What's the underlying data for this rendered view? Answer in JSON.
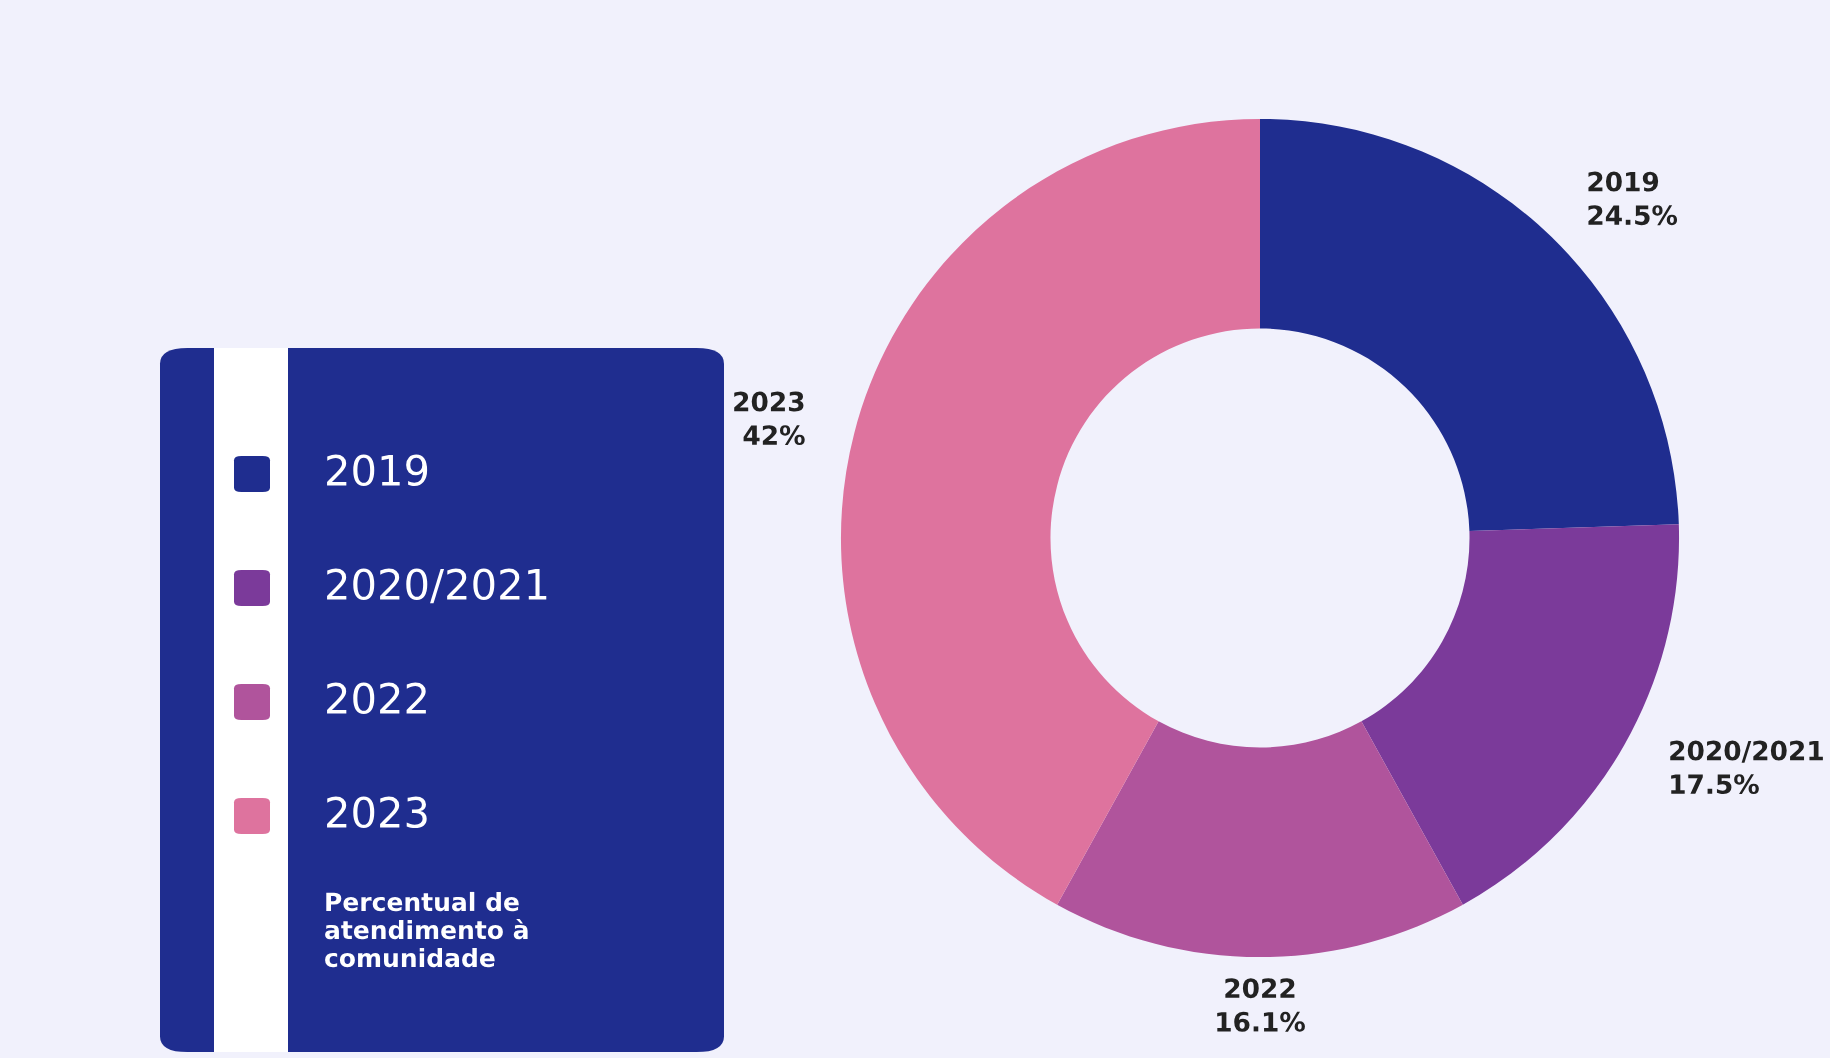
{
  "chart_data": {
    "type": "donut",
    "categories": [
      "2019",
      "2020/2021",
      "2022",
      "2023"
    ],
    "values": [
      24.5,
      17.5,
      16.1,
      42
    ],
    "colors": [
      "#1f2d8f",
      "#7b3a9a",
      "#b0549c",
      "#de739e"
    ],
    "value_labels": [
      "24.5%",
      "17.5%",
      "16.1%",
      "42%"
    ],
    "legend": "left",
    "legend_title": "Percentual de atendimento à comunidade"
  }
}
